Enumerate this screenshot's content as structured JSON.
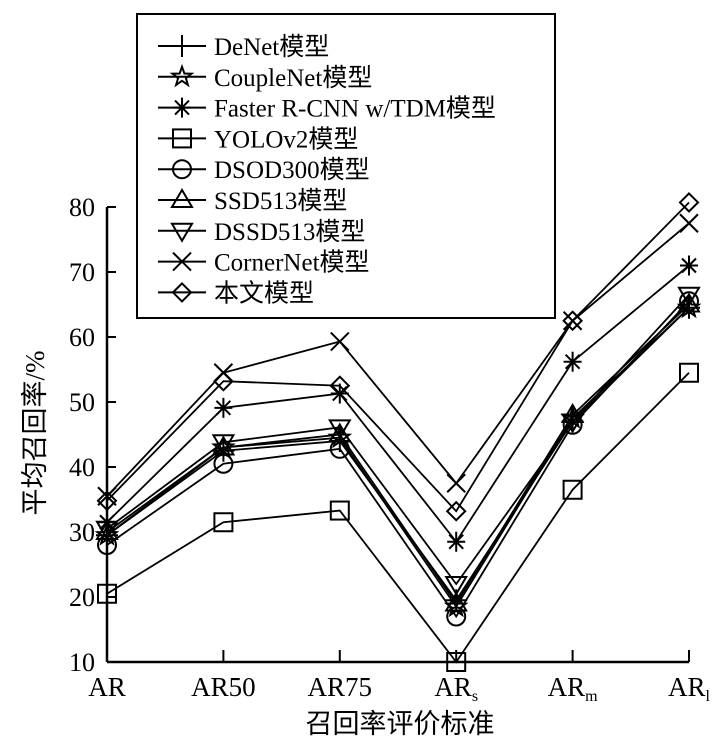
{
  "chart_data": {
    "type": "line",
    "title": "",
    "xlabel": "召回率评价标准",
    "ylabel": "平均召回率/%",
    "categories": [
      {
        "main": "AR",
        "sub": ""
      },
      {
        "main": "AR50",
        "sub": ""
      },
      {
        "main": "AR75",
        "sub": ""
      },
      {
        "main": "AR",
        "sub": "s"
      },
      {
        "main": "AR",
        "sub": "m"
      },
      {
        "main": "AR",
        "sub": "l"
      }
    ],
    "ylim": [
      10,
      80
    ],
    "yticks": [
      "10",
      "20",
      "30",
      "40",
      "50",
      "60",
      "70",
      "80"
    ],
    "grid": false,
    "legend_position": "top-center",
    "series": [
      {
        "name": "DeNet模型",
        "marker": "plus",
        "values": [
          29.5,
          42.5,
          44.0,
          19.5,
          47.0,
          64.5
        ]
      },
      {
        "name": "CoupleNet模型",
        "marker": "star",
        "values": [
          29.5,
          43.0,
          44.5,
          18.5,
          47.5,
          64.5
        ]
      },
      {
        "name": "Faster R-CNN w/TDM模型",
        "marker": "asterisk",
        "values": [
          31.5,
          49.1,
          51.3,
          28.5,
          56.2,
          71.0
        ]
      },
      {
        "name": "YOLOv2模型",
        "marker": "square",
        "values": [
          20.5,
          31.5,
          33.3,
          10.0,
          36.5,
          54.5
        ]
      },
      {
        "name": "DSOD300模型",
        "marker": "circle",
        "values": [
          28.0,
          40.5,
          42.8,
          17.0,
          46.5,
          65.5
        ]
      },
      {
        "name": "SSD513模型",
        "marker": "triangle-up",
        "values": [
          30.0,
          43.0,
          45.0,
          19.0,
          48.0,
          65.0
        ]
      },
      {
        "name": "DSSD513模型",
        "marker": "triangle-down",
        "values": [
          30.5,
          43.8,
          46.1,
          22.0,
          47.0,
          66.5
        ]
      },
      {
        "name": "CornerNet模型",
        "marker": "x",
        "values": [
          35.5,
          54.5,
          59.3,
          37.5,
          62.5,
          77.5
        ]
      },
      {
        "name": "本文模型",
        "marker": "diamond",
        "values": [
          34.8,
          53.2,
          52.5,
          33.2,
          62.5,
          80.7
        ]
      }
    ]
  }
}
